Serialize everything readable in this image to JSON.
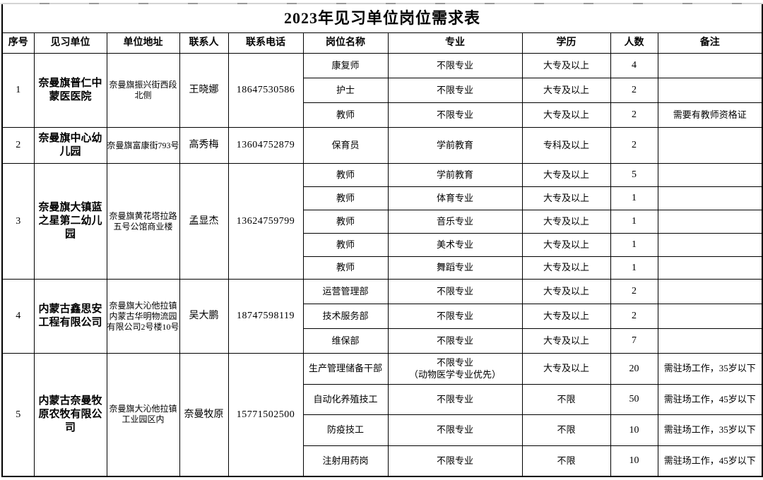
{
  "title": "2023年见习单位岗位需求表",
  "columns": [
    "序号",
    "见习单位",
    "单位地址",
    "联系人",
    "联系电话",
    "岗位名称",
    "专业",
    "学历",
    "人数",
    "备注"
  ],
  "colors": {
    "border": "#000000",
    "text": "#000000",
    "background": "#ffffff"
  },
  "companies": [
    {
      "no": "1",
      "unit": "奈曼旗普仁中蒙医医院",
      "address": "奈曼旗振兴街西段北侧",
      "contact": "王晓娜",
      "phone": "18647530586",
      "positions": [
        {
          "name": "康复师",
          "major": "不限专业",
          "education": "大专及以上",
          "count": "4",
          "note": ""
        },
        {
          "name": "护士",
          "major": "不限专业",
          "education": "大专及以上",
          "count": "2",
          "note": ""
        },
        {
          "name": "教师",
          "major": "不限专业",
          "education": "大专及以上",
          "count": "2",
          "note": "需要有教师资格证"
        }
      ]
    },
    {
      "no": "2",
      "unit": "奈曼旗中心幼儿园",
      "address": "奈曼旗富康街793号",
      "contact": "高秀梅",
      "phone": "13604752879",
      "positions": [
        {
          "name": "保育员",
          "major": "学前教育",
          "education": "专科及以上",
          "count": "2",
          "note": ""
        }
      ]
    },
    {
      "no": "3",
      "unit": "奈曼旗大镇蓝之星第二幼儿园",
      "address": "奈曼旗黄花塔拉路五号公馆商业楼",
      "contact": "孟显杰",
      "phone": "13624759799",
      "positions": [
        {
          "name": "教师",
          "major": "学前教育",
          "education": "大专及以上",
          "count": "5",
          "note": ""
        },
        {
          "name": "教师",
          "major": "体育专业",
          "education": "大专及以上",
          "count": "1",
          "note": ""
        },
        {
          "name": "教师",
          "major": "音乐专业",
          "education": "大专及以上",
          "count": "1",
          "note": ""
        },
        {
          "name": "教师",
          "major": "美术专业",
          "education": "大专及以上",
          "count": "1",
          "note": ""
        },
        {
          "name": "教师",
          "major": "舞蹈专业",
          "education": "大专及以上",
          "count": "1",
          "note": ""
        }
      ]
    },
    {
      "no": "4",
      "unit": "内蒙古鑫思安工程有限公司",
      "address": "奈曼旗大沁他拉镇内蒙古华明物流园有限公司2号楼10号",
      "contact": "吴大鹏",
      "phone": "18747598119",
      "positions": [
        {
          "name": "运营管理部",
          "major": "不限专业",
          "education": "大专及以上",
          "count": "2",
          "note": ""
        },
        {
          "name": "技术服务部",
          "major": "不限专业",
          "education": "大专及以上",
          "count": "2",
          "note": ""
        },
        {
          "name": "维保部",
          "major": "不限专业",
          "education": "大专及以上",
          "count": "7",
          "note": ""
        }
      ]
    },
    {
      "no": "5",
      "unit": "内蒙古奈曼牧原农牧有限公司",
      "address": "奈曼旗大沁他拉镇工业园区内",
      "contact": "奈曼牧原",
      "phone": "15771502500",
      "positions": [
        {
          "name": "生产管理储备干部",
          "major": "不限专业\n（动物医学专业优先）",
          "education": "大专及以上",
          "count": "20",
          "note": "需驻场工作，35岁以下"
        },
        {
          "name": "自动化养殖技工",
          "major": "不限专业",
          "education": "不限",
          "count": "50",
          "note": "需驻场工作，45岁以下"
        },
        {
          "name": "防疫技工",
          "major": "不限专业",
          "education": "不限",
          "count": "10",
          "note": "需驻场工作，35岁以下"
        },
        {
          "name": "注射用药岗",
          "major": "不限专业",
          "education": "不限",
          "count": "10",
          "note": "需驻场工作，45岁以下"
        }
      ]
    }
  ]
}
